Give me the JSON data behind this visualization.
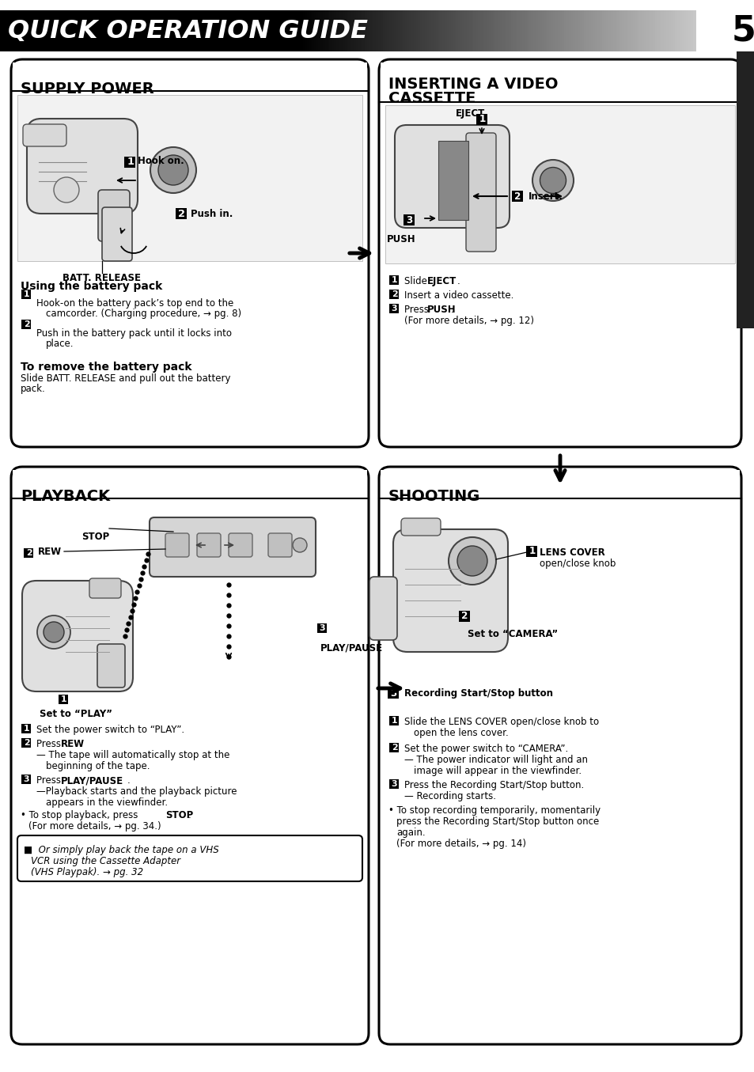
{
  "page_bg": "#ffffff",
  "header_text": "QUICK OPERATION GUIDE",
  "header_page_num": "5",
  "supply_power_title": "SUPPLY POWER",
  "inserting_title_line1": "INSERTING A VIDEO",
  "inserting_title_line2": "CASSETTE",
  "playback_title": "PLAYBACK",
  "shooting_title": "SHOOTING",
  "sp_img_hook": "Hook on.",
  "sp_img_push": "Push in.",
  "sp_img_batt": "BATT. RELEASE",
  "sp_using_title": "Using the battery pack",
  "sp_s1a": "Hook-on the battery pack’s top end to the",
  "sp_s1b": "camcorder. (Charging procedure, → pg. 8)",
  "sp_s2a": "Push in the battery pack until it locks into",
  "sp_s2b": "place.",
  "sp_remove_title": "To remove the battery pack",
  "sp_remove_a": "Slide BATT. RELEASE and pull out the battery",
  "sp_remove_b": "pack.",
  "iv_eject": "EJECT",
  "iv_push": "PUSH",
  "iv_insert": "Insert.",
  "iv_s1_a": "Slide ",
  "iv_s1_b": "EJECT",
  "iv_s1_c": ".",
  "iv_s2": "Insert a video cassette.",
  "iv_s3_a": "Press ",
  "iv_s3_b": "PUSH",
  "iv_s3_c": ".",
  "iv_details": "(For more details, → pg. 12)",
  "pb_stop": "STOP",
  "pb_rew": "REW",
  "pb_playpause": "PLAY/PAUSE",
  "pb_setplay": "Set to “PLAY”",
  "pb_s1": "Set the power switch to “PLAY”.",
  "pb_s2_a": "Press ",
  "pb_s2_b": "REW",
  "pb_s2_c": ".",
  "pb_s2_d": "— The tape will automatically stop at the",
  "pb_s2_e": "beginning of the tape.",
  "pb_s3_a": "Press ",
  "pb_s3_b": "PLAY/PAUSE",
  "pb_s3_c": ".",
  "pb_s3_d": "—Playback starts and the playback picture",
  "pb_s3_e": "appears in the viewfinder.",
  "pb_stop_a": "• To stop playback, press ",
  "pb_stop_b": "STOP",
  "pb_stop_c": ".",
  "pb_details": "(For more details, → pg. 34.)",
  "pb_note_a": "■  Or simply play back the tape on a VHS",
  "pb_note_b": "VCR using the Cassette Adapter",
  "pb_note_c": "(VHS Playpak). → pg. 32",
  "sh_lens_a": "LENS COVER",
  "sh_lens_b": "open/close knob",
  "sh_camera": "Set to “CAMERA”",
  "sh_rec": "Recording Start/Stop button",
  "sh_s1_a": "Slide the LENS COVER open/close knob to",
  "sh_s1_b": "open the lens cover.",
  "sh_s2_a": "Set the power switch to “CAMERA”.",
  "sh_s2_b": "— The power indicator will light and an",
  "sh_s2_c": "image will appear in the viewfinder.",
  "sh_s3_a": "Press the Recording Start/Stop button.",
  "sh_s3_b": "— Recording starts.",
  "sh_stop_a": "• To stop recording temporarily, momentarily",
  "sh_stop_b": "press the Recording Start/Stop button once",
  "sh_stop_c": "again.",
  "sh_details": "(For more details, → pg. 14)"
}
